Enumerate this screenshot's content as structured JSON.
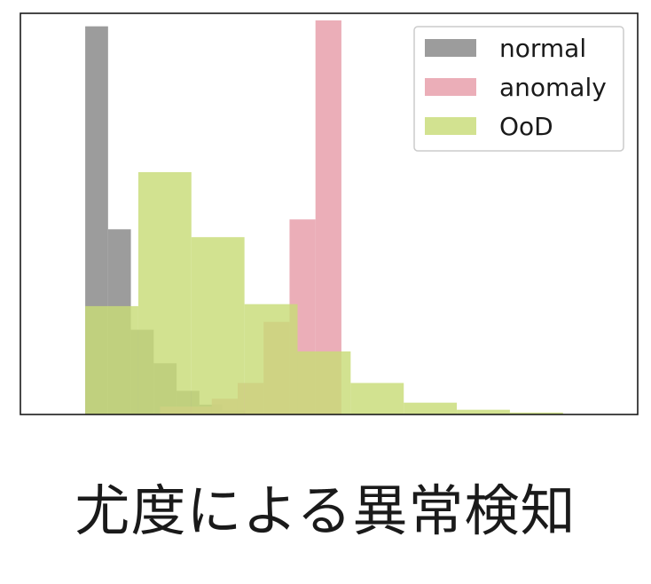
{
  "caption": "尤度による異常検知",
  "chart_data": {
    "type": "histogram",
    "xlim": [
      0,
      100
    ],
    "ylim": [
      0,
      100
    ],
    "axes_ticks": false,
    "legend_placement": "upper-right",
    "series": [
      {
        "name": "normal",
        "color": "#808080",
        "alpha": 0.78,
        "bins": [
          {
            "x0": 10.5,
            "x1": 14.2,
            "y": 98.5
          },
          {
            "x0": 14.2,
            "x1": 17.9,
            "y": 47.0
          },
          {
            "x0": 17.9,
            "x1": 21.6,
            "y": 21.5
          },
          {
            "x0": 21.6,
            "x1": 25.3,
            "y": 13.0
          },
          {
            "x0": 25.3,
            "x1": 29.0,
            "y": 6.0
          },
          {
            "x0": 29.0,
            "x1": 32.7,
            "y": 2.5
          },
          {
            "x0": 32.7,
            "x1": 36.4,
            "y": 1.0
          }
        ]
      },
      {
        "name": "anomaly",
        "color": "#e8a0ac",
        "alpha": 0.85,
        "bins": [
          {
            "x0": 22.6,
            "x1": 26.8,
            "y": 2.0
          },
          {
            "x0": 26.8,
            "x1": 31.0,
            "y": 2.0
          },
          {
            "x0": 31.0,
            "x1": 35.2,
            "y": 4.0
          },
          {
            "x0": 35.2,
            "x1": 39.4,
            "y": 8.0
          },
          {
            "x0": 39.4,
            "x1": 43.6,
            "y": 23.5
          },
          {
            "x0": 43.6,
            "x1": 47.8,
            "y": 49.5
          },
          {
            "x0": 47.8,
            "x1": 52.0,
            "y": 100.0
          }
        ]
      },
      {
        "name": "OoD",
        "color": "#c8dc78",
        "alpha": 0.82,
        "bins": [
          {
            "x0": 10.5,
            "x1": 19.1,
            "y": 27.5
          },
          {
            "x0": 19.1,
            "x1": 27.7,
            "y": 61.5
          },
          {
            "x0": 27.7,
            "x1": 36.3,
            "y": 45.0
          },
          {
            "x0": 36.3,
            "x1": 44.9,
            "y": 28.0
          },
          {
            "x0": 44.9,
            "x1": 53.5,
            "y": 16.0
          },
          {
            "x0": 53.5,
            "x1": 62.1,
            "y": 8.0
          },
          {
            "x0": 62.1,
            "x1": 70.7,
            "y": 3.0
          },
          {
            "x0": 70.7,
            "x1": 79.3,
            "y": 1.2
          },
          {
            "x0": 79.3,
            "x1": 87.9,
            "y": 0.5
          }
        ]
      }
    ]
  }
}
